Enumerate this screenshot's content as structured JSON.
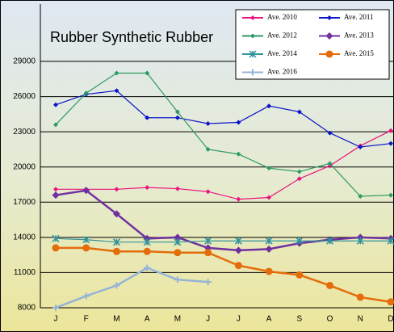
{
  "chart_data": {
    "type": "line",
    "title": "Rubber Synthetic Rubber",
    "categories": [
      "J",
      "F",
      "M",
      "A",
      "M",
      "J",
      "J",
      "A",
      "S",
      "O",
      "N",
      "D"
    ],
    "series": [
      {
        "name": "Ave. 2010",
        "color": "#e8157f",
        "marker": "diamond",
        "values": [
          18100,
          18100,
          18100,
          18250,
          18150,
          17900,
          17250,
          17400,
          19000,
          20100,
          21800,
          23100
        ]
      },
      {
        "name": "Ave. 2011",
        "color": "#0a14c8",
        "marker": "diamond",
        "values": [
          25300,
          26200,
          26500,
          24200,
          24200,
          23700,
          23800,
          25200,
          24700,
          22900,
          21700,
          22000
        ]
      },
      {
        "name": "Ave. 2012",
        "color": "#2e9a64",
        "marker": "diamond",
        "values": [
          23600,
          26300,
          28000,
          28000,
          24700,
          21500,
          21100,
          19900,
          19600,
          20300,
          17500,
          17600
        ]
      },
      {
        "name": "Ave. 2013",
        "color": "#7030a0",
        "marker": "bigdiamond",
        "values": [
          17600,
          18000,
          16000,
          13900,
          14000,
          13100,
          12900,
          13000,
          13500,
          13800,
          14000,
          13900
        ]
      },
      {
        "name": "Ave. 2014",
        "color": "#31949c",
        "marker": "asterisk",
        "values": [
          13900,
          13800,
          13600,
          13600,
          13600,
          13700,
          13700,
          13700,
          13700,
          13700,
          13700,
          13700
        ]
      },
      {
        "name": "Ave. 2015",
        "color": "#e46c0a",
        "marker": "circle",
        "values": [
          13100,
          13100,
          12800,
          12800,
          12700,
          12700,
          11600,
          11100,
          10800,
          9900,
          8900,
          8500
        ]
      },
      {
        "name": "Ave. 2016",
        "color": "#95b3d7",
        "marker": "plus",
        "values": [
          8000,
          9000,
          9900,
          11400,
          10400,
          10200,
          null,
          null,
          null,
          null,
          null,
          null
        ]
      }
    ],
    "ylim": [
      8000,
      29000
    ],
    "yticks": [
      8000,
      11000,
      14000,
      17000,
      20000,
      23000,
      26000,
      29000
    ],
    "grid": true
  }
}
